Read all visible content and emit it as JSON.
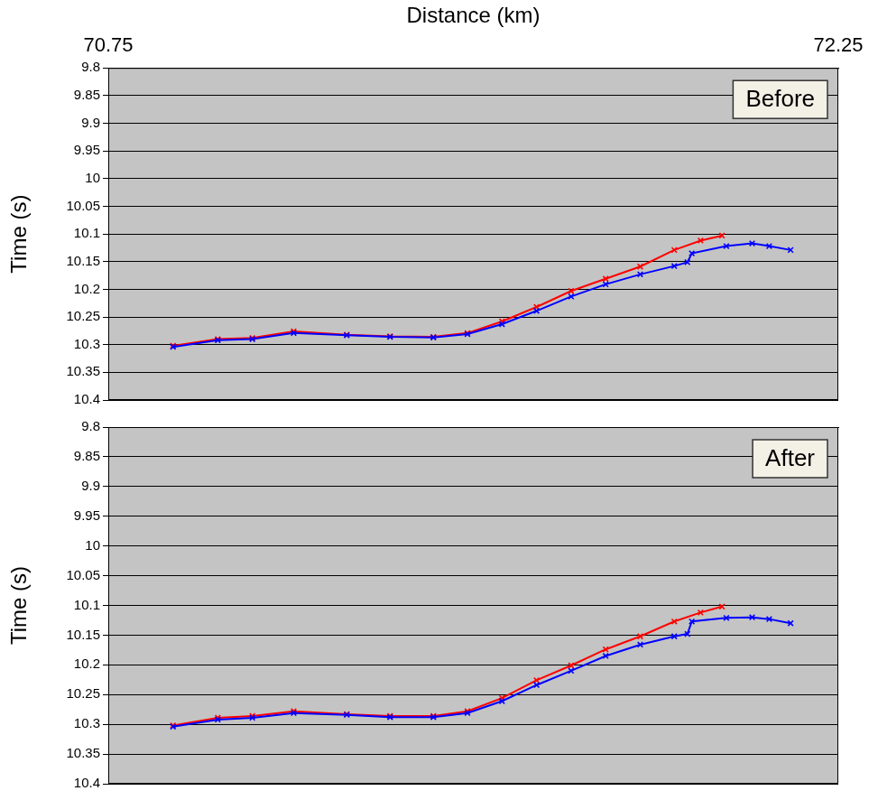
{
  "chart_data": [
    {
      "type": "scatter",
      "annotation": "Before",
      "x_label": "Distance (km)",
      "y_label": "Time (s)",
      "xlim": [
        70.75,
        72.25
      ],
      "xticks": [
        70.75,
        72.25
      ],
      "ylim": [
        9.8,
        10.4
      ],
      "yticks": [
        9.8,
        9.85,
        9.9,
        9.95,
        10.0,
        10.05,
        10.1,
        10.15,
        10.2,
        10.25,
        10.3,
        10.35,
        10.4
      ],
      "grid": true,
      "series": [
        {
          "color": "#0000ff",
          "marker": "x",
          "line_style": "solid",
          "x": [
            70.883,
            70.975,
            71.046,
            71.131,
            71.24,
            71.329,
            71.418,
            71.488,
            71.559,
            71.63,
            71.701,
            71.772,
            71.843,
            71.913,
            71.94,
            71.949,
            72.02,
            72.073,
            72.108,
            72.152
          ],
          "values": [
            10.304,
            10.292,
            10.29,
            10.279,
            10.283,
            10.286,
            10.287,
            10.281,
            10.263,
            10.239,
            10.213,
            10.191,
            10.173,
            10.158,
            10.151,
            10.135,
            10.122,
            10.117,
            10.122,
            10.129
          ]
        },
        {
          "color": "#ff0000",
          "marker": "x",
          "line_style": "solid",
          "x": [
            70.883,
            70.975,
            71.046,
            71.131,
            71.24,
            71.329,
            71.418,
            71.488,
            71.559,
            71.63,
            71.701,
            71.772,
            71.843,
            71.913,
            71.967,
            72.011
          ],
          "values": [
            10.302,
            10.29,
            10.288,
            10.276,
            10.282,
            10.285,
            10.286,
            10.279,
            10.258,
            10.232,
            10.203,
            10.181,
            10.159,
            10.129,
            10.112,
            10.103
          ]
        }
      ]
    },
    {
      "type": "scatter",
      "annotation": "After",
      "y_label": "Time (s)",
      "tick_labels": "y",
      "xlim": [
        70.75,
        72.25
      ],
      "ylim": [
        9.8,
        10.4
      ],
      "yticks": [
        9.8,
        9.85,
        9.9,
        9.95,
        10.0,
        10.05,
        10.1,
        10.15,
        10.2,
        10.25,
        10.3,
        10.35,
        10.4
      ],
      "grid": true,
      "series": [
        {
          "color": "#0000ff",
          "marker": "x",
          "line_style": "solid",
          "x": [
            70.883,
            70.975,
            71.046,
            71.131,
            71.24,
            71.329,
            71.418,
            71.488,
            71.559,
            71.63,
            71.701,
            71.772,
            71.843,
            71.913,
            71.94,
            71.949,
            72.02,
            72.073,
            72.108,
            72.152
          ],
          "values": [
            10.304,
            10.292,
            10.289,
            10.281,
            10.284,
            10.288,
            10.288,
            10.281,
            10.261,
            10.234,
            10.21,
            10.185,
            10.166,
            10.152,
            10.148,
            10.127,
            10.121,
            10.12,
            10.123,
            10.13
          ]
        },
        {
          "color": "#ff0000",
          "marker": "x",
          "line_style": "solid",
          "x": [
            70.883,
            70.975,
            71.046,
            71.131,
            71.24,
            71.329,
            71.418,
            71.488,
            71.559,
            71.63,
            71.701,
            71.772,
            71.843,
            71.913,
            71.967,
            72.011
          ],
          "values": [
            10.302,
            10.289,
            10.286,
            10.278,
            10.283,
            10.286,
            10.286,
            10.278,
            10.256,
            10.226,
            10.201,
            10.174,
            10.152,
            10.127,
            10.112,
            10.102
          ]
        }
      ]
    }
  ]
}
